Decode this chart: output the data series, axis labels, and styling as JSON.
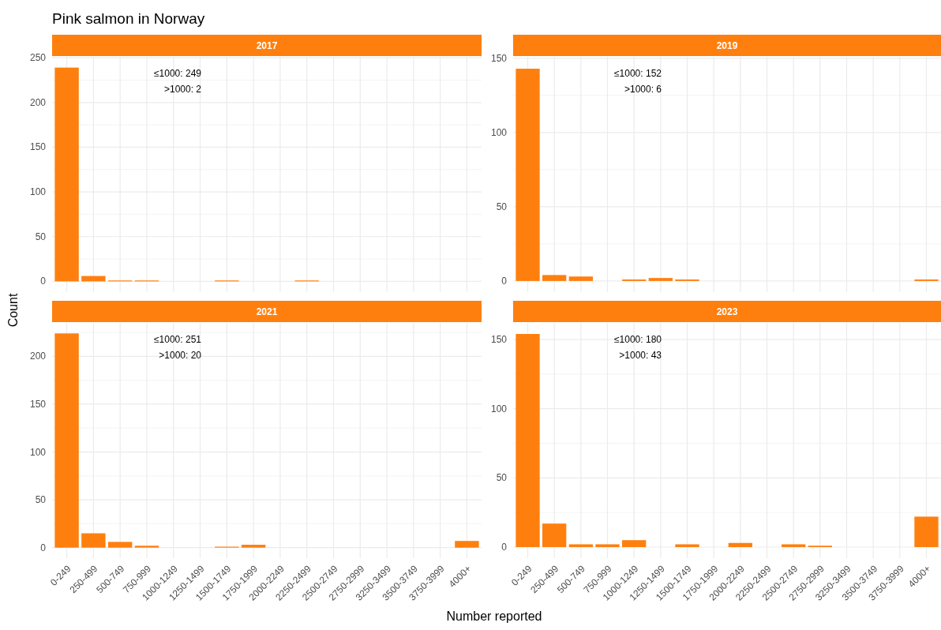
{
  "chart_data": [
    {
      "type": "bar",
      "title": "2017",
      "annotations": [
        "Pink salmon in Norway",
        "≤1000: 249",
        ">1000: 2"
      ],
      "ylabel": "Count",
      "categories": [
        null,
        null,
        null,
        null,
        null,
        null,
        null,
        null,
        null,
        null,
        null,
        null,
        null,
        null,
        null,
        null
      ],
      "values": [
        239,
        6,
        1,
        1,
        0,
        0,
        1,
        0,
        0,
        1,
        0,
        0,
        0,
        0,
        0,
        0
      ],
      "color": "#ff7f0e",
      "ylim": [
        -12,
        251
      ],
      "yticks": [
        0,
        50,
        100,
        150,
        200,
        250
      ],
      "grid": true,
      "tick_labels": "y"
    },
    {
      "type": "bar",
      "title": "2019",
      "annotations": [
        "≤1000: 152",
        ">1000: 6"
      ],
      "categories": [
        null,
        null,
        null,
        null,
        null,
        null,
        null,
        null,
        null,
        null,
        null,
        null,
        null,
        null,
        null,
        null
      ],
      "values": [
        143,
        4,
        3,
        0,
        1,
        2,
        1,
        0,
        0,
        0,
        0,
        0,
        0,
        0,
        0,
        1
      ],
      "color": "#ff7f0e",
      "ylim": [
        -7.5,
        151
      ],
      "yticks": [
        0,
        50,
        100,
        150
      ],
      "grid": true,
      "tick_labels": "y"
    },
    {
      "type": "bar",
      "title": "2021",
      "annotations": [
        "≤1000: 251",
        ">1000: 20"
      ],
      "categories": [
        "0-249",
        "250-499",
        "500-749",
        "750-999",
        "1000-1249",
        "1250-1499",
        "1500-1749",
        "1750-1999",
        "2000-2249",
        "2250-2499",
        "2500-2749",
        "2750-2999",
        "3250-3499",
        "3500-3749",
        "3750-3999",
        "4000+"
      ],
      "values": [
        224,
        15,
        6,
        2,
        0,
        0,
        1,
        3,
        0,
        0,
        0,
        0,
        0,
        0,
        0,
        7
      ],
      "color": "#ff7f0e",
      "ylim": [
        -11,
        235
      ],
      "yticks": [
        0,
        50,
        100,
        150,
        200
      ],
      "grid": true
    },
    {
      "type": "bar",
      "title": "2023",
      "annotations": [
        "≤1000: 180",
        ">1000: 43"
      ],
      "xlabel": "Number reported",
      "categories": [
        "0-249",
        "250-499",
        "500-749",
        "750-999",
        "1000-1249",
        "1250-1499",
        "1500-1749",
        "1750-1999",
        "2000-2249",
        "2250-2499",
        "2500-2749",
        "2750-2999",
        "3250-3499",
        "3500-3749",
        "3750-3999",
        "4000+"
      ],
      "values": [
        154,
        17,
        2,
        2,
        5,
        0,
        2,
        0,
        3,
        0,
        2,
        1,
        0,
        0,
        0,
        22
      ],
      "color": "#ff7f0e",
      "ylim": [
        -8,
        162
      ],
      "yticks": [
        0,
        50,
        100,
        150
      ],
      "grid": true
    }
  ]
}
